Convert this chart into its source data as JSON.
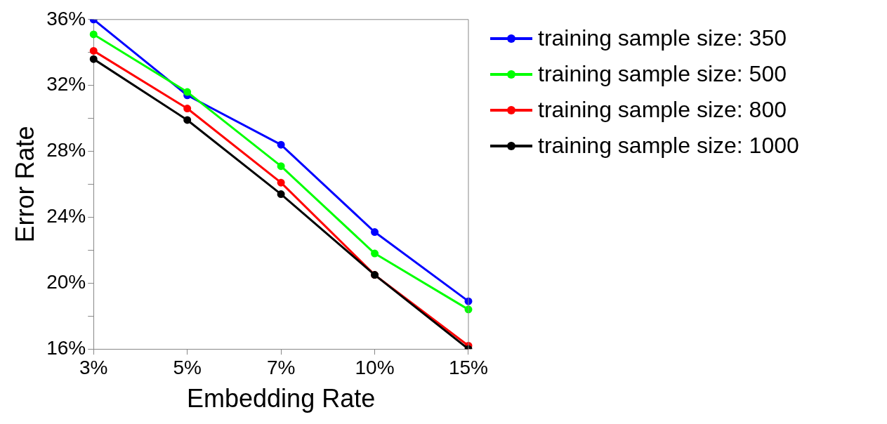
{
  "chart_data": {
    "type": "line",
    "xlabel": "Embedding Rate",
    "ylabel": "Error Rate",
    "categories": [
      "3%",
      "5%",
      "7%",
      "10%",
      "15%"
    ],
    "series": [
      {
        "name": "training sample size: 350",
        "color": "#0000ff",
        "values": [
          36.0,
          31.4,
          28.4,
          23.1,
          18.9
        ]
      },
      {
        "name": "training sample size: 500",
        "color": "#00ff00",
        "values": [
          35.1,
          31.6,
          27.1,
          21.8,
          18.4
        ]
      },
      {
        "name": "training sample size: 800",
        "color": "#ff0000",
        "values": [
          34.1,
          30.6,
          26.1,
          20.5,
          16.2
        ]
      },
      {
        "name": "training sample size: 1000",
        "color": "#000000",
        "values": [
          33.6,
          29.9,
          25.4,
          20.5,
          16.0
        ]
      }
    ],
    "ylim": [
      16,
      36
    ],
    "yticks": [
      {
        "value": 16,
        "label": "16%"
      },
      {
        "value": 18,
        "label": null
      },
      {
        "value": 20,
        "label": "20%"
      },
      {
        "value": 22,
        "label": null
      },
      {
        "value": 24,
        "label": "24%"
      },
      {
        "value": 26,
        "label": null
      },
      {
        "value": 28,
        "label": "28%"
      },
      {
        "value": 30,
        "label": null
      },
      {
        "value": 32,
        "label": "32%"
      },
      {
        "value": 34,
        "label": null
      },
      {
        "value": 36,
        "label": "36%"
      }
    ],
    "grid": false,
    "legend": "right",
    "marker": "circle",
    "line_style": "solid"
  }
}
